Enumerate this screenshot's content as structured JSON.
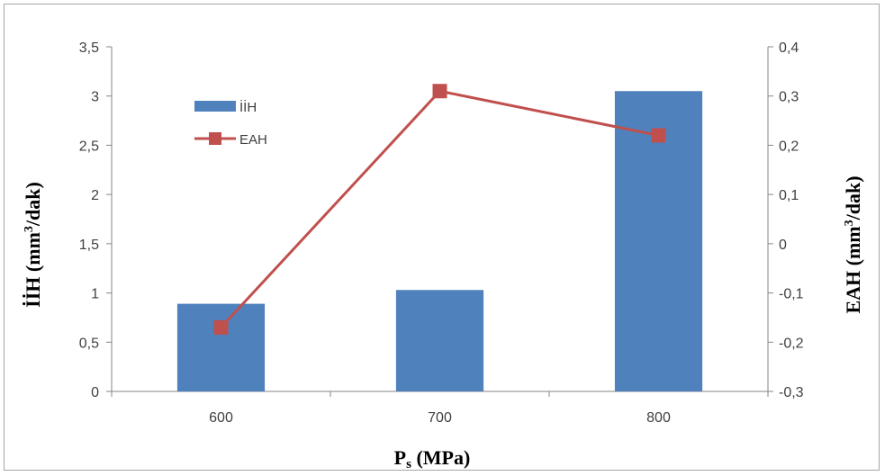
{
  "chart_data": {
    "type": "bar+line",
    "categories": [
      "600",
      "700",
      "800"
    ],
    "series": [
      {
        "name": "İİH",
        "type": "bar",
        "axis": "left",
        "values": [
          0.89,
          1.03,
          3.05
        ],
        "color": "#4f81bd"
      },
      {
        "name": "EAH",
        "type": "line",
        "axis": "right",
        "values": [
          -0.17,
          0.31,
          0.22
        ],
        "color": "#c0504d"
      }
    ],
    "xlabel_main": "P",
    "xlabel_sub": "s",
    "xlabel_unit": " (MPa)",
    "ylabel_left_main": "İİH (mm",
    "ylabel_left_sup": "3",
    "ylabel_left_unit": "/dak)",
    "ylabel_right_main": "EAH (mm",
    "ylabel_right_sup": "3",
    "ylabel_right_unit": "/dak)",
    "ylim_left": [
      0,
      3.5
    ],
    "ylim_right": [
      -0.3,
      0.4
    ],
    "yticks_left": [
      "0",
      "0,5",
      "1",
      "1,5",
      "2",
      "2,5",
      "3",
      "3,5"
    ],
    "yticks_right": [
      "-0,3",
      "-0,2",
      "-0,1",
      "0",
      "0,1",
      "0,2",
      "0,3",
      "0,4"
    ],
    "grid": false,
    "legend": "top-left"
  }
}
